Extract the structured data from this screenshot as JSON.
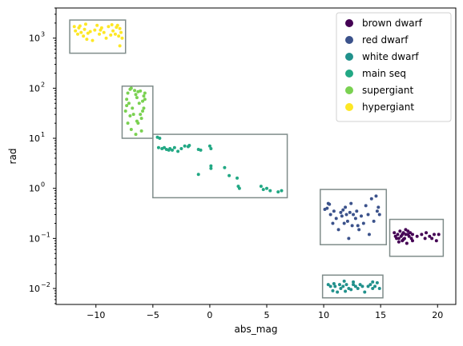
{
  "chart_data": {
    "type": "scatter",
    "xlabel": "abs_mag",
    "ylabel": "rad",
    "yscale": "log",
    "xlim": [
      -13.5,
      21.6
    ],
    "ylim": [
      0.0048,
      4000
    ],
    "x_ticks": [
      {
        "value": -10,
        "label": "−10"
      },
      {
        "value": -5,
        "label": "−5"
      },
      {
        "value": 0,
        "label": "0"
      },
      {
        "value": 5,
        "label": "5"
      },
      {
        "value": 10,
        "label": "10"
      },
      {
        "value": 15,
        "label": "15"
      },
      {
        "value": 20,
        "label": "20"
      }
    ],
    "y_ticks": [
      {
        "exp": -2
      },
      {
        "exp": -1
      },
      {
        "exp": 0
      },
      {
        "exp": 1
      },
      {
        "exp": 2
      },
      {
        "exp": 3
      }
    ],
    "grid": false,
    "legend_position": "top-right",
    "series": [
      {
        "name": "brown dwarf",
        "color": "#440154",
        "box": {
          "x": [
            15.8,
            20.5
          ],
          "y": [
            0.044,
            0.24
          ]
        },
        "points": [
          [
            16.2,
            0.13
          ],
          [
            16.4,
            0.1
          ],
          [
            16.5,
            0.12
          ],
          [
            16.6,
            0.085
          ],
          [
            16.7,
            0.14
          ],
          [
            16.8,
            0.11
          ],
          [
            16.9,
            0.09
          ],
          [
            17.0,
            0.13
          ],
          [
            17.1,
            0.1
          ],
          [
            17.2,
            0.12
          ],
          [
            17.3,
            0.08
          ],
          [
            17.4,
            0.14
          ],
          [
            17.5,
            0.11
          ],
          [
            17.6,
            0.13
          ],
          [
            17.7,
            0.1
          ],
          [
            17.8,
            0.12
          ],
          [
            17.2,
            0.15
          ],
          [
            16.9,
            0.12
          ],
          [
            16.3,
            0.11
          ],
          [
            17.0,
            0.095
          ],
          [
            18.6,
            0.12
          ],
          [
            18.9,
            0.1
          ],
          [
            19.0,
            0.13
          ],
          [
            19.3,
            0.11
          ],
          [
            19.7,
            0.12
          ],
          [
            19.9,
            0.09
          ],
          [
            20.1,
            0.12
          ],
          [
            19.5,
            0.1
          ],
          [
            16.6,
            0.1
          ],
          [
            17.4,
            0.12
          ],
          [
            17.8,
            0.09
          ],
          [
            18.2,
            0.11
          ]
        ]
      },
      {
        "name": "red dwarf",
        "color": "#3b528b",
        "box": {
          "x": [
            9.7,
            15.5
          ],
          "y": [
            0.075,
            0.95
          ]
        },
        "points": [
          [
            10.1,
            0.38
          ],
          [
            10.3,
            0.4
          ],
          [
            10.4,
            0.5
          ],
          [
            10.5,
            0.48
          ],
          [
            10.6,
            0.3
          ],
          [
            10.8,
            0.2
          ],
          [
            10.9,
            0.35
          ],
          [
            11.1,
            0.25
          ],
          [
            11.3,
            0.15
          ],
          [
            11.5,
            0.33
          ],
          [
            11.6,
            0.28
          ],
          [
            11.7,
            0.37
          ],
          [
            11.8,
            0.2
          ],
          [
            12.0,
            0.3
          ],
          [
            12.1,
            0.22
          ],
          [
            12.3,
            0.33
          ],
          [
            12.4,
            0.5
          ],
          [
            12.5,
            0.18
          ],
          [
            12.6,
            0.3
          ],
          [
            12.8,
            0.25
          ],
          [
            12.9,
            0.35
          ],
          [
            13.1,
            0.15
          ],
          [
            13.3,
            0.28
          ],
          [
            13.5,
            0.2
          ],
          [
            13.7,
            0.45
          ],
          [
            13.9,
            0.3
          ],
          [
            14.0,
            0.12
          ],
          [
            14.2,
            0.62
          ],
          [
            14.4,
            0.22
          ],
          [
            14.6,
            0.7
          ],
          [
            14.7,
            0.35
          ],
          [
            14.9,
            0.3
          ],
          [
            12.2,
            0.1
          ],
          [
            13.0,
            0.18
          ],
          [
            11.9,
            0.42
          ],
          [
            14.8,
            0.42
          ]
        ]
      },
      {
        "name": "white dwarf",
        "color": "#21918c",
        "box": {
          "x": [
            9.9,
            15.2
          ],
          "y": [
            0.0065,
            0.0185
          ]
        },
        "points": [
          [
            10.4,
            0.012
          ],
          [
            10.6,
            0.011
          ],
          [
            10.8,
            0.009
          ],
          [
            11.0,
            0.011
          ],
          [
            11.2,
            0.0085
          ],
          [
            11.4,
            0.012
          ],
          [
            11.5,
            0.01
          ],
          [
            11.7,
            0.011
          ],
          [
            11.9,
            0.0088
          ],
          [
            12.0,
            0.012
          ],
          [
            12.2,
            0.01
          ],
          [
            12.4,
            0.0095
          ],
          [
            12.6,
            0.012
          ],
          [
            12.8,
            0.011
          ],
          [
            13.0,
            0.01
          ],
          [
            13.2,
            0.012
          ],
          [
            13.4,
            0.011
          ],
          [
            13.6,
            0.0085
          ],
          [
            13.9,
            0.011
          ],
          [
            14.1,
            0.012
          ],
          [
            14.3,
            0.01
          ],
          [
            14.5,
            0.011
          ],
          [
            14.7,
            0.013
          ],
          [
            14.9,
            0.01
          ],
          [
            11.8,
            0.014
          ],
          [
            12.6,
            0.0135
          ],
          [
            10.9,
            0.0125
          ],
          [
            14.3,
            0.0135
          ]
        ]
      },
      {
        "name": "main seq",
        "color": "#22a884",
        "box": {
          "x": [
            -5.0,
            6.8
          ],
          "y": [
            0.65,
            12
          ]
        },
        "points": [
          [
            -4.6,
            10.5
          ],
          [
            -4.4,
            10
          ],
          [
            -4.5,
            6.5
          ],
          [
            -4.2,
            6.2
          ],
          [
            -4.0,
            6.5
          ],
          [
            -3.8,
            6.0
          ],
          [
            -3.6,
            5.8
          ],
          [
            -3.5,
            6.2
          ],
          [
            -3.3,
            5.8
          ],
          [
            -3.1,
            6.5
          ],
          [
            -2.8,
            5.5
          ],
          [
            -2.5,
            6.2
          ],
          [
            -2.2,
            7.0
          ],
          [
            -1.9,
            6.8
          ],
          [
            -1.8,
            7.2
          ],
          [
            -1.0,
            6.0
          ],
          [
            -0.8,
            5.8
          ],
          [
            0.0,
            7.0
          ],
          [
            0.1,
            6.2
          ],
          [
            -1.0,
            1.9
          ],
          [
            0.1,
            2.8
          ],
          [
            0.1,
            2.5
          ],
          [
            1.3,
            2.6
          ],
          [
            1.7,
            1.8
          ],
          [
            2.4,
            1.6
          ],
          [
            2.5,
            1.1
          ],
          [
            2.6,
            1.0
          ],
          [
            4.5,
            1.1
          ],
          [
            4.7,
            0.95
          ],
          [
            5.0,
            1.0
          ],
          [
            5.3,
            0.9
          ],
          [
            6.0,
            0.85
          ],
          [
            6.3,
            0.9
          ]
        ]
      },
      {
        "name": "supergiant",
        "color": "#7ad151",
        "box": {
          "x": [
            -7.7,
            -5.0
          ],
          "y": [
            10,
            110
          ]
        },
        "points": [
          [
            -7.2,
            80
          ],
          [
            -7.0,
            95
          ],
          [
            -6.9,
            100
          ],
          [
            -7.3,
            60
          ],
          [
            -7.1,
            50
          ],
          [
            -6.8,
            40
          ],
          [
            -7.4,
            35
          ],
          [
            -7.0,
            28
          ],
          [
            -7.2,
            20
          ],
          [
            -6.9,
            15
          ],
          [
            -6.6,
            90
          ],
          [
            -6.5,
            75
          ],
          [
            -6.4,
            65
          ],
          [
            -6.3,
            85
          ],
          [
            -6.2,
            50
          ],
          [
            -6.1,
            30
          ],
          [
            -6.0,
            25
          ],
          [
            -5.9,
            55
          ],
          [
            -5.8,
            70
          ],
          [
            -5.7,
            80
          ],
          [
            -5.8,
            40
          ],
          [
            -6.3,
            20
          ],
          [
            -6.0,
            14
          ],
          [
            -6.5,
            12
          ],
          [
            -7.3,
            45
          ],
          [
            -6.1,
            88
          ],
          [
            -6.7,
            30
          ],
          [
            -5.9,
            35
          ],
          [
            -6.4,
            22
          ],
          [
            -5.7,
            60
          ]
        ]
      },
      {
        "name": "hypergiant",
        "color": "#fde725",
        "box": {
          "x": [
            -12.3,
            -7.4
          ],
          "y": [
            500,
            2300
          ]
        },
        "points": [
          [
            -11.9,
            1700
          ],
          [
            -11.8,
            1400
          ],
          [
            -11.6,
            1200
          ],
          [
            -11.5,
            1600
          ],
          [
            -11.3,
            1300
          ],
          [
            -11.1,
            1100
          ],
          [
            -11.0,
            1500
          ],
          [
            -10.9,
            1900
          ],
          [
            -10.7,
            1250
          ],
          [
            -10.5,
            1350
          ],
          [
            -10.3,
            900
          ],
          [
            -10.1,
            1450
          ],
          [
            -9.9,
            1800
          ],
          [
            -9.7,
            1200
          ],
          [
            -9.5,
            1600
          ],
          [
            -9.3,
            1300
          ],
          [
            -9.1,
            1000
          ],
          [
            -8.9,
            1700
          ],
          [
            -8.7,
            1150
          ],
          [
            -8.5,
            1400
          ],
          [
            -8.3,
            1200
          ],
          [
            -8.1,
            1800
          ],
          [
            -7.9,
            1550
          ],
          [
            -7.8,
            1300
          ],
          [
            -7.7,
            1000
          ],
          [
            -7.9,
            700
          ],
          [
            -8.2,
            1650
          ],
          [
            -11.4,
            1750
          ],
          [
            -10.8,
            950
          ],
          [
            -9.6,
            1450
          ],
          [
            -8.6,
            1850
          ],
          [
            -8.0,
            1100
          ]
        ]
      }
    ]
  }
}
